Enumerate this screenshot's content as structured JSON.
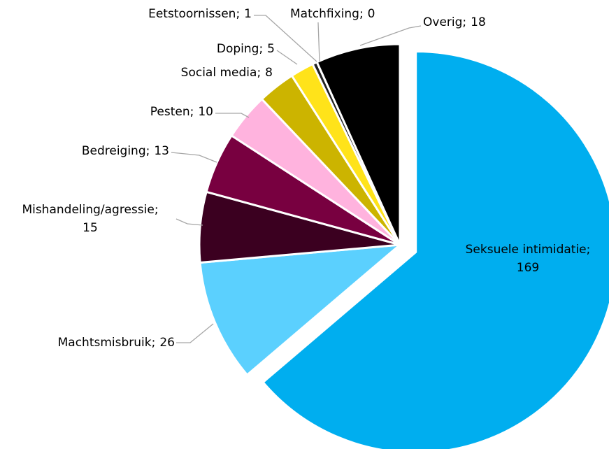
{
  "chart_data": {
    "type": "pie",
    "categories": [
      "Seksuele intimidatie",
      "Machtsmisbruik",
      "Mishandeling/agressie",
      "Bedreiging",
      "Pesten",
      "Social media",
      "Doping",
      "Eetstoornissen",
      "Matchfixing",
      "Overig"
    ],
    "values": [
      169,
      26,
      15,
      13,
      10,
      8,
      5,
      1,
      0,
      18
    ],
    "colors": [
      "#00aeef",
      "#5bd0fe",
      "#3b0020",
      "#780040",
      "#ffb3de",
      "#ccb400",
      "#ffe31a",
      "#222222",
      "#222222",
      "#000000"
    ],
    "separator": ";",
    "exploded": [
      0
    ]
  }
}
